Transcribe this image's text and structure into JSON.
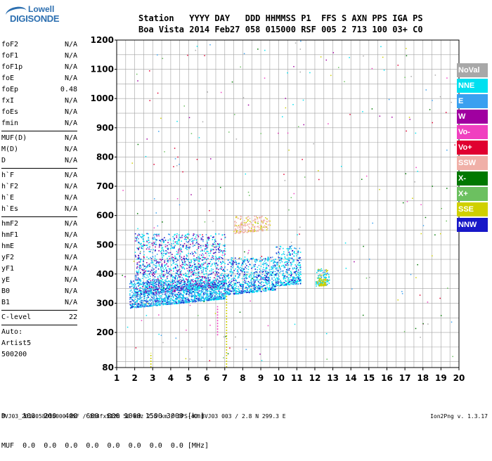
{
  "logo": {
    "line1": "Lowell",
    "line2": "DIGISONDE"
  },
  "header": {
    "labels": "Station   YYYY DAY   DDD HHMMSS P1  FFS S AXN PPS IGA PS",
    "values": "Boa Vista 2014 Feb27 058 015000 RSF 005 2 713 100 03+ C0"
  },
  "params_group1": [
    {
      "name": "foF2",
      "value": "N/A"
    },
    {
      "name": "foF1",
      "value": "N/A"
    },
    {
      "name": "foF1p",
      "value": "N/A"
    },
    {
      "name": "foE",
      "value": "N/A"
    },
    {
      "name": "foEp",
      "value": "0.48"
    },
    {
      "name": "fxI",
      "value": "N/A"
    },
    {
      "name": "foEs",
      "value": "N/A"
    },
    {
      "name": "fmin",
      "value": "N/A"
    }
  ],
  "params_group2": [
    {
      "name": "MUF(D)",
      "value": "N/A"
    },
    {
      "name": "M(D)",
      "value": "N/A"
    },
    {
      "name": "D",
      "value": "N/A"
    }
  ],
  "params_group3": [
    {
      "name": "h`F",
      "value": "N/A"
    },
    {
      "name": "h`F2",
      "value": "N/A"
    },
    {
      "name": "h`E",
      "value": "N/A"
    },
    {
      "name": "h`Es",
      "value": "N/A"
    }
  ],
  "params_group4": [
    {
      "name": "hmF2",
      "value": "N/A"
    },
    {
      "name": "hmF1",
      "value": "N/A"
    },
    {
      "name": "hmE",
      "value": "N/A"
    },
    {
      "name": "yF2",
      "value": "N/A"
    },
    {
      "name": "yF1",
      "value": "N/A"
    },
    {
      "name": "yE",
      "value": "N/A"
    },
    {
      "name": "B0",
      "value": "N/A"
    },
    {
      "name": "B1",
      "value": "N/A"
    }
  ],
  "clevel": {
    "name": "C-level",
    "value": "22"
  },
  "auto": [
    "Auto:",
    "Artist5",
    "500200"
  ],
  "legend": [
    {
      "label": "NoVal",
      "color": "#a8a8a8"
    },
    {
      "label": "NNE",
      "color": "#00e0f0"
    },
    {
      "label": "E",
      "color": "#3aa0f0"
    },
    {
      "label": "W",
      "color": "#a000a0"
    },
    {
      "label": "Vo-",
      "color": "#f040c0"
    },
    {
      "label": "Vo+",
      "color": "#e00030"
    },
    {
      "label": "SSW",
      "color": "#f0b0a8"
    },
    {
      "label": "X-",
      "color": "#007800"
    },
    {
      "label": "X+",
      "color": "#6cc060"
    },
    {
      "label": "SSE",
      "color": "#d0d000"
    },
    {
      "label": "NNW",
      "color": "#1818c8"
    }
  ],
  "bottom": {
    "d_line": "D    100  200  400  600  800 1000 1500 3000 [km]",
    "muf_line": "MUF  0.0  0.0  0.0  0.0  0.0  0.0  0.0  0.0 [MHz]"
  },
  "footer": {
    "left": "BVJ03_2014058015000.RSF / 384fx512h 50 kHz 2.5 km / DPS-4D BVJ03 003 / 2.8 N 299.3 E",
    "right": "Ion2Png v. 1.3.17"
  },
  "chart_data": {
    "type": "scatter",
    "x_ticks": [
      "1",
      "2",
      "3",
      "4",
      "5",
      "6",
      "7",
      "8",
      "9",
      "10",
      "11",
      "12",
      "13",
      "14",
      "15",
      "16",
      "17",
      "18",
      "19",
      "20"
    ],
    "y_ticks": [
      "80",
      "200",
      "300",
      "400",
      "500",
      "600",
      "700",
      "800",
      "900",
      "1000",
      "1100",
      "1200"
    ],
    "xlim": [
      1,
      20
    ],
    "ylim": [
      80,
      1200
    ],
    "grid": true,
    "legend_position": "right"
  }
}
